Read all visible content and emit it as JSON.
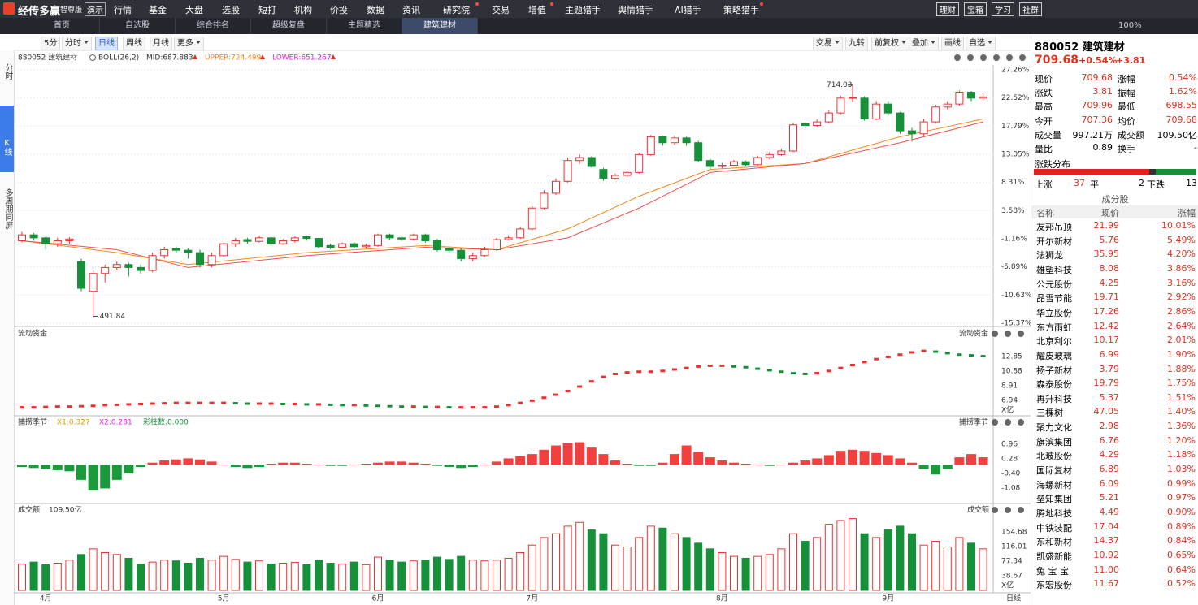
{
  "menu": {
    "logo": "经传多赢",
    "edition": "智尊版",
    "demo": "演示",
    "items": [
      "行情",
      "基金",
      "大盘",
      "选股",
      "短打",
      "机构",
      "价投",
      "数据",
      "资讯",
      "研究院",
      "交易",
      "增值",
      "主题猎手",
      "舆情猎手",
      "AI猎手",
      "策略猎手"
    ],
    "right": [
      "理财",
      "宝箱",
      "学习",
      "社群"
    ]
  },
  "tabs": [
    "首页",
    "自选股",
    "综合排名",
    "超级复盘",
    "主题精选",
    "建筑建材"
  ],
  "zoom": "100%",
  "toolbar": {
    "left": [
      "5分",
      "分时",
      "日线",
      "周线",
      "月线",
      "更多"
    ],
    "right": [
      "交易",
      "九转",
      "前复权",
      "叠加",
      "画线",
      "自选"
    ]
  },
  "side": [
    "分时",
    "K线",
    "多周期同屏"
  ],
  "period": "日线",
  "chart": {
    "type": "candlestick",
    "name": "880052 建筑建材",
    "indicator": "BOLL(26,2)",
    "mid": "MID:687.883",
    "upper": "UPPER:724.499",
    "lower": "LOWER:651.267",
    "ylim": [
      -15.37,
      27.26
    ],
    "yticks": [
      {
        "value": 27.26,
        "label": "27.26%"
      },
      {
        "value": 22.52,
        "label": "22.52%"
      },
      {
        "value": 17.79,
        "label": "17.79%"
      },
      {
        "value": 13.05,
        "label": "13.05%"
      },
      {
        "value": 8.31,
        "label": "8.31%"
      },
      {
        "value": 3.58,
        "label": "3.58%"
      },
      {
        "value": -1.16,
        "label": "-1.16%"
      },
      {
        "value": -5.89,
        "label": "-5.89%"
      },
      {
        "value": -10.63,
        "label": "-10.63%"
      },
      {
        "value": -15.37,
        "label": "-15.37%"
      }
    ],
    "categories": [
      null,
      null,
      "4月",
      null,
      null,
      null,
      null,
      null,
      null,
      null,
      null,
      null,
      null,
      null,
      null,
      null,
      null,
      "5月",
      null,
      null,
      null,
      null,
      null,
      null,
      null,
      null,
      null,
      null,
      null,
      null,
      "6月",
      null,
      null,
      null,
      null,
      null,
      null,
      null,
      null,
      null,
      null,
      null,
      null,
      "7月",
      null,
      null,
      null,
      null,
      null,
      null,
      null,
      null,
      null,
      null,
      null,
      null,
      null,
      null,
      null,
      "8月",
      null,
      null,
      null,
      null,
      null,
      null,
      null,
      null,
      null,
      null,
      null,
      null,
      null,
      "9月",
      null,
      null,
      null,
      null,
      null,
      null,
      null,
      null
    ],
    "candles": [
      [
        -1.5,
        -0.5,
        0,
        -1.8
      ],
      [
        -0.5,
        -1,
        -0.2,
        -1.5
      ],
      [
        -1,
        -2,
        -0.8,
        -3
      ],
      [
        -2,
        -1.5,
        -1,
        -2.5
      ],
      [
        -1.5,
        -1.2,
        -0.9,
        -2
      ],
      [
        -5,
        -9.5,
        -4.5,
        -10
      ],
      [
        -10,
        -7,
        -6.5,
        -14.2
      ],
      [
        -7,
        -6,
        -5.5,
        -8.5
      ],
      [
        -6,
        -5.5,
        -5,
        -6.5
      ],
      [
        -5.5,
        -6,
        -5.2,
        -7.5
      ],
      [
        -6,
        -6.5,
        -5.5,
        -7
      ],
      [
        -6.5,
        -4,
        -3.5,
        -6.8
      ],
      [
        -4,
        -3,
        -2.5,
        -4.5
      ],
      [
        -2.8,
        -3.1,
        -2.5,
        -3.5
      ],
      [
        -3.1,
        -3.5,
        -2.8,
        -4.5
      ],
      [
        -3.5,
        -5.5,
        -3,
        -6
      ],
      [
        -5.5,
        -4,
        -3.5,
        -6
      ],
      [
        -4,
        -2,
        -1.8,
        -4.2
      ],
      [
        -2,
        -1.5,
        -1,
        -2.5
      ],
      [
        -1.3,
        -1.6,
        -1,
        -2
      ],
      [
        -1.6,
        -1,
        -0.6,
        -1.8
      ],
      [
        -1,
        -2,
        -0.8,
        -2.4
      ],
      [
        -2,
        -1.5,
        -1.2,
        -2.2
      ],
      [
        -1.5,
        -1,
        -0.7,
        -1.8
      ],
      [
        -0.8,
        -1.1,
        -0.6,
        -1.5
      ],
      [
        -1.1,
        -2.5,
        -1,
        -2.8
      ],
      [
        -2.3,
        -2.6,
        -2,
        -2.9
      ],
      [
        -2.6,
        -2,
        -1.8,
        -2.8
      ],
      [
        -2,
        -2.5,
        -1.8,
        -2.8
      ],
      [
        -2.5,
        -2.3,
        -2,
        -2.8
      ],
      [
        -2.3,
        -0.5,
        -0.3,
        -2.5
      ],
      [
        -0.5,
        -1,
        -0.3,
        -1.3
      ],
      [
        -1,
        -1.2,
        -0.8,
        -1.5
      ],
      [
        -1.2,
        -0.5,
        -0.3,
        -1.5
      ],
      [
        -0.5,
        -1.5,
        -0.3,
        -1.8
      ],
      [
        -1.5,
        -3,
        -1.2,
        -3.3
      ],
      [
        -2.8,
        -3.1,
        -2.5,
        -3.5
      ],
      [
        -3.1,
        -4.5,
        -2.8,
        -5
      ],
      [
        -4.5,
        -4,
        -3.5,
        -5
      ],
      [
        -4,
        -3,
        -2.5,
        -4.2
      ],
      [
        -3,
        -1.3,
        -1,
        -3.2
      ],
      [
        -1.3,
        -1,
        -0.6,
        -1.5
      ],
      [
        -1,
        0.5,
        0.8,
        -1.2
      ],
      [
        0.5,
        4,
        4.3,
        0.3
      ],
      [
        4,
        6.5,
        7,
        3.8
      ],
      [
        6.5,
        8.5,
        9,
        6.2
      ],
      [
        8.5,
        12,
        12.5,
        8.3
      ],
      [
        12,
        12.5,
        13,
        11.5
      ],
      [
        12.5,
        11,
        12.7,
        10.8
      ],
      [
        10.5,
        9,
        10.8,
        8.6
      ],
      [
        9,
        9.5,
        9.8,
        8.8
      ],
      [
        9.5,
        10,
        10.3,
        9.2
      ],
      [
        10,
        13,
        13.3,
        9.8
      ],
      [
        13,
        16,
        16.3,
        12.8
      ],
      [
        16,
        15,
        16.2,
        14.5
      ],
      [
        15,
        15.8,
        16.2,
        14.6
      ],
      [
        15.8,
        15,
        16,
        14.5
      ],
      [
        15,
        12,
        15.3,
        11.7
      ],
      [
        12,
        11,
        12.3,
        10.6
      ],
      [
        11,
        11.2,
        11.6,
        10.7
      ],
      [
        11.2,
        11.8,
        12.1,
        11
      ],
      [
        11.8,
        11.3,
        12,
        11
      ],
      [
        11.3,
        12.5,
        12.8,
        11.1
      ],
      [
        12.5,
        13,
        13.4,
        12.2
      ],
      [
        13,
        13.6,
        14,
        12.8
      ],
      [
        13.6,
        18,
        18.3,
        13.4
      ],
      [
        18.2,
        17.9,
        18.5,
        17.4
      ],
      [
        17.9,
        18.5,
        18.9,
        17.6
      ],
      [
        18.5,
        20,
        20.4,
        18.2
      ],
      [
        20,
        22.5,
        22.9,
        19.8
      ],
      [
        22.5,
        22.6,
        24.7,
        21.9
      ],
      [
        22.5,
        19,
        22.8,
        18.7
      ],
      [
        19,
        21.5,
        22,
        18.8
      ],
      [
        21.5,
        20,
        22,
        19.6
      ],
      [
        20,
        17,
        20.2,
        16.5
      ],
      [
        17,
        16.5,
        17.5,
        15.2
      ],
      [
        16.5,
        18.5,
        19,
        16.2
      ],
      [
        18.5,
        21,
        21.4,
        18.2
      ],
      [
        21,
        21.5,
        22,
        20.6
      ],
      [
        21.5,
        23.5,
        23.8,
        21.2
      ],
      [
        23.5,
        22.5,
        23.7,
        22
      ],
      [
        22.5,
        22.7,
        23.5,
        22
      ]
    ],
    "lines": [
      {
        "color": "#f08c1e",
        "points": [
          [
            0,
            -1.5
          ],
          [
            8,
            -3.5
          ],
          [
            14,
            -5.5
          ],
          [
            24,
            -3.5
          ],
          [
            34,
            -2.3
          ],
          [
            40,
            -3
          ],
          [
            46,
            0.5
          ],
          [
            52,
            6
          ],
          [
            58,
            10.5
          ],
          [
            66,
            11.5
          ],
          [
            74,
            16
          ],
          [
            81,
            19
          ]
        ]
      },
      {
        "color": "#f05050",
        "points": [
          [
            0,
            -1.5
          ],
          [
            8,
            -3
          ],
          [
            14,
            -6
          ],
          [
            24,
            -4
          ],
          [
            34,
            -2.6
          ],
          [
            40,
            -3
          ],
          [
            46,
            -1
          ],
          [
            52,
            4
          ],
          [
            58,
            10
          ],
          [
            66,
            11.5
          ],
          [
            74,
            15
          ],
          [
            81,
            18.5
          ]
        ]
      }
    ],
    "annotations": [
      {
        "label": "714.03",
        "x": 70,
        "y": 24.7
      },
      {
        "label": "491.84",
        "x": 6,
        "y": -14.2
      }
    ],
    "flow": {
      "title": "流动资金",
      "unit": "X亿",
      "ylim": [
        4.86,
        16.68
      ],
      "yticks": [
        12.85,
        10.88,
        8.91,
        6.94
      ],
      "values": [
        6.0,
        6.0,
        6.05,
        6.1,
        6.1,
        6.15,
        6.2,
        6.3,
        6.35,
        6.4,
        6.45,
        6.5,
        6.55,
        6.6,
        6.6,
        6.6,
        6.6,
        6.6,
        6.55,
        6.5,
        6.5,
        6.5,
        6.45,
        6.45,
        6.4,
        6.4,
        6.35,
        6.3,
        6.3,
        6.25,
        6.2,
        6.15,
        6.1,
        6.1,
        6.05,
        6.05,
        6.0,
        6.0,
        6.0,
        6.0,
        6.1,
        6.3,
        6.6,
        6.9,
        7.3,
        7.7,
        8.2,
        8.8,
        9.5,
        10.1,
        10.5,
        10.7,
        10.8,
        10.8,
        10.9,
        11.1,
        11.3,
        11.5,
        11.6,
        11.6,
        11.5,
        11.4,
        11.2,
        11.0,
        10.8,
        10.6,
        10.5,
        10.6,
        10.9,
        11.3,
        11.7,
        12.1,
        12.5,
        12.8,
        13.1,
        13.4,
        13.6,
        13.5,
        13.3,
        13.1,
        13.0,
        12.9
      ]
    },
    "season": {
      "title": "捕捞季节",
      "x1": "X1:0.327",
      "x2": "X2:0.281",
      "bars": "彩柱数:0.000",
      "ylim": [
        -1.8,
        2.28
      ],
      "yticks": [
        0.96,
        0.28,
        {
          "value": -0.4,
          "label": "-0.40"
        },
        -1.08
      ],
      "values": [
        -0.1,
        -0.15,
        -0.2,
        -0.25,
        -0.3,
        -0.7,
        -1.2,
        -1.1,
        -0.7,
        -0.4,
        -0.1,
        0.1,
        0.2,
        0.25,
        0.3,
        0.25,
        0.15,
        0,
        -0.1,
        -0.15,
        -0.1,
        0.05,
        0.1,
        0.1,
        0.05,
        0,
        -0.05,
        -0.05,
        0,
        0.05,
        0.1,
        0.15,
        0.15,
        0.1,
        0.05,
        -0.05,
        -0.1,
        -0.15,
        -0.1,
        0,
        0.15,
        0.3,
        0.4,
        0.5,
        0.7,
        0.9,
        1.0,
        1.05,
        0.8,
        0.5,
        0.2,
        0.05,
        -0.05,
        -0.05,
        0.1,
        0.5,
        0.9,
        0.6,
        0.35,
        0.2,
        0.1,
        0.05,
        0,
        -0.05,
        0,
        0.1,
        0.2,
        0.3,
        0.45,
        0.65,
        0.7,
        0.65,
        0.55,
        0.45,
        0.3,
        0.1,
        -0.2,
        -0.45,
        -0.2,
        0.35,
        0.5,
        0.35
      ]
    },
    "volume": {
      "title": "成交额",
      "last": "109.50亿",
      "unit": "X亿",
      "ylim": [
        0,
        230
      ],
      "yticks": [
        154.68,
        116.01,
        77.34,
        38.67
      ],
      "values": [
        70,
        75,
        68,
        72,
        80,
        95,
        110,
        100,
        95,
        85,
        70,
        75,
        80,
        78,
        72,
        85,
        80,
        90,
        82,
        75,
        78,
        70,
        72,
        74,
        68,
        80,
        72,
        70,
        75,
        68,
        88,
        80,
        75,
        78,
        80,
        88,
        82,
        90,
        80,
        78,
        80,
        85,
        100,
        120,
        140,
        150,
        170,
        180,
        160,
        150,
        120,
        115,
        140,
        170,
        165,
        150,
        140,
        125,
        110,
        100,
        90,
        85,
        90,
        95,
        110,
        150,
        130,
        140,
        175,
        185,
        190,
        150,
        140,
        160,
        170,
        150,
        120,
        130,
        115,
        140,
        125,
        110
      ]
    }
  },
  "quote": {
    "name": "880052 建筑建材",
    "price": "709.68",
    "pct": "+0.54%",
    "chg": "+3.81",
    "rows": [
      [
        "现价",
        "709.68",
        "涨幅",
        "0.54%"
      ],
      [
        "涨跌",
        "3.81",
        "振幅",
        "1.62%"
      ],
      [
        "最高",
        "709.96",
        "最低",
        "698.55"
      ],
      [
        "今开",
        "707.36",
        "均价",
        "709.68"
      ],
      [
        "成交量",
        "997.21万",
        "成交额",
        "109.50亿"
      ],
      [
        "量比",
        "0.89",
        "换手",
        "-"
      ]
    ],
    "dist_title": "涨跌分布",
    "up_label": "上涨",
    "up": 37,
    "flat_label": "平",
    "flat": 2,
    "down_label": "下跌",
    "down": 13
  },
  "stocks": {
    "title": "成分股",
    "header": [
      "名称",
      "现价",
      "涨幅"
    ],
    "rows": [
      [
        "友邦吊顶",
        "21.99",
        "10.01%"
      ],
      [
        "开尔新材",
        "5.76",
        "5.49%"
      ],
      [
        "法狮龙",
        "35.95",
        "4.20%"
      ],
      [
        "雄塑科技",
        "8.08",
        "3.86%"
      ],
      [
        "公元股份",
        "4.25",
        "3.16%"
      ],
      [
        "晶雪节能",
        "19.71",
        "2.92%"
      ],
      [
        "华立股份",
        "17.26",
        "2.86%"
      ],
      [
        "东方雨虹",
        "12.42",
        "2.64%"
      ],
      [
        "北京利尔",
        "10.17",
        "2.01%"
      ],
      [
        "耀皮玻璃",
        "6.99",
        "1.90%"
      ],
      [
        "扬子新材",
        "3.79",
        "1.88%"
      ],
      [
        "森泰股份",
        "19.79",
        "1.75%"
      ],
      [
        "再升科技",
        "5.37",
        "1.51%"
      ],
      [
        "三棵树",
        "47.05",
        "1.40%"
      ],
      [
        "聚力文化",
        "2.98",
        "1.36%"
      ],
      [
        "旗滨集团",
        "6.76",
        "1.20%"
      ],
      [
        "北玻股份",
        "4.29",
        "1.18%"
      ],
      [
        "国际复材",
        "6.89",
        "1.03%"
      ],
      [
        "海螺新材",
        "6.09",
        "0.99%"
      ],
      [
        "垒知集团",
        "5.21",
        "0.97%"
      ],
      [
        "腾地科技",
        "4.49",
        "0.90%"
      ],
      [
        "中铁装配",
        "17.04",
        "0.89%"
      ],
      [
        "东和新材",
        "14.37",
        "0.84%"
      ],
      [
        "凯盛新能",
        "10.92",
        "0.65%"
      ],
      [
        "兔 宝 宝",
        "11.00",
        "0.64%"
      ],
      [
        "东宏股份",
        "11.67",
        "0.52%"
      ]
    ]
  }
}
